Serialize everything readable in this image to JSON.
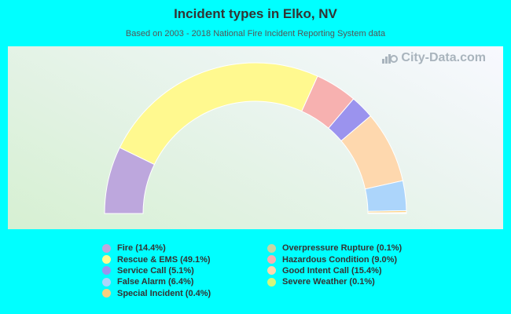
{
  "page": {
    "title": "Incident types in Elko, NV",
    "subtitle": "Based on 2003 - 2018 National Fire Incident Reporting System data",
    "watermark": "City-Data.com",
    "background_color": "#00ffff"
  },
  "chart_data": {
    "type": "pie",
    "variant": "semi-donut",
    "title": "Incident types in Elko, NV",
    "subtitle": "Based on 2003 - 2018 National Fire Incident Reporting System data",
    "legend_placement": "bottom",
    "series": [
      {
        "name": "Fire",
        "value": 14.4,
        "label": "Fire (14.4%)",
        "color": "#bda7dd"
      },
      {
        "name": "Rescue & EMS",
        "value": 49.1,
        "label": "Rescue & EMS (49.1%)",
        "color": "#fff98f"
      },
      {
        "name": "Hazardous Condition",
        "value": 9.0,
        "label": "Hazardous Condition (9.0%)",
        "color": "#f7b1b0"
      },
      {
        "name": "Service Call",
        "value": 5.1,
        "label": "Service Call (5.1%)",
        "color": "#9b93ee"
      },
      {
        "name": "Good Intent Call",
        "value": 15.4,
        "label": "Good Intent Call (15.4%)",
        "color": "#fed8ae"
      },
      {
        "name": "False Alarm",
        "value": 6.4,
        "label": "False Alarm (6.4%)",
        "color": "#acd5fb"
      },
      {
        "name": "Special Incident",
        "value": 0.4,
        "label": "Special Incident (0.4%)",
        "color": "#f9cf80"
      },
      {
        "name": "Overpressure Rupture",
        "value": 0.1,
        "label": "Overpressure Rupture (0.1%)",
        "color": "#c7d7a3"
      },
      {
        "name": "Severe Weather",
        "value": 0.1,
        "label": "Severe Weather (0.1%)",
        "color": "#d3f77c"
      }
    ],
    "legend": {
      "left": [
        {
          "label": "Fire (14.4%)",
          "color": "#bda7dd"
        },
        {
          "label": "Rescue & EMS (49.1%)",
          "color": "#fff98f"
        },
        {
          "label": "Service Call (5.1%)",
          "color": "#9b93ee"
        },
        {
          "label": "False Alarm (6.4%)",
          "color": "#acd5fb"
        },
        {
          "label": "Special Incident (0.4%)",
          "color": "#f9cf80"
        }
      ],
      "right": [
        {
          "label": "Overpressure Rupture (0.1%)",
          "color": "#c7d7a3"
        },
        {
          "label": "Hazardous Condition (9.0%)",
          "color": "#f7b1b0"
        },
        {
          "label": "Good Intent Call (15.4%)",
          "color": "#fed8ae"
        },
        {
          "label": "Severe Weather (0.1%)",
          "color": "#d3f77c"
        }
      ]
    }
  }
}
